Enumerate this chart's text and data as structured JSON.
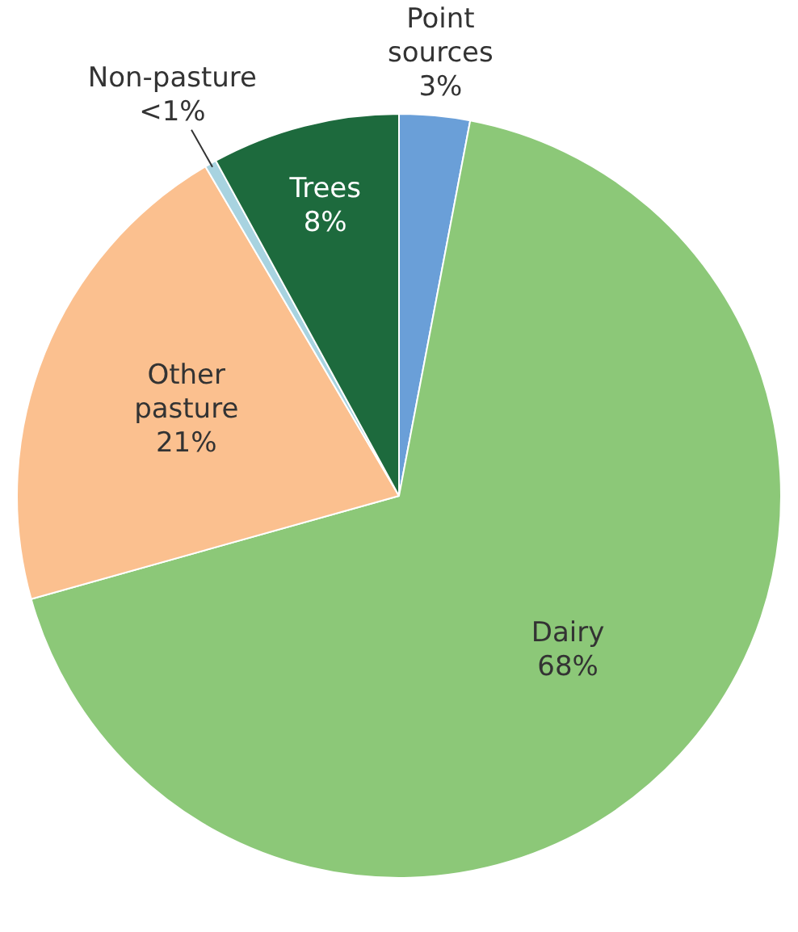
{
  "chart_data": {
    "type": "pie",
    "categories": [
      "Point sources",
      "Dairy",
      "Other pasture",
      "Non-pasture",
      "Trees"
    ],
    "values": [
      3,
      68,
      21,
      0.5,
      8
    ],
    "colors": [
      "#6a9fd8",
      "#8cc878",
      "#fbc08f",
      "#a8d3e0",
      "#1d6a3d"
    ],
    "value_labels": [
      "3%",
      "68%",
      "21%",
      "<1%",
      "8%"
    ]
  }
}
